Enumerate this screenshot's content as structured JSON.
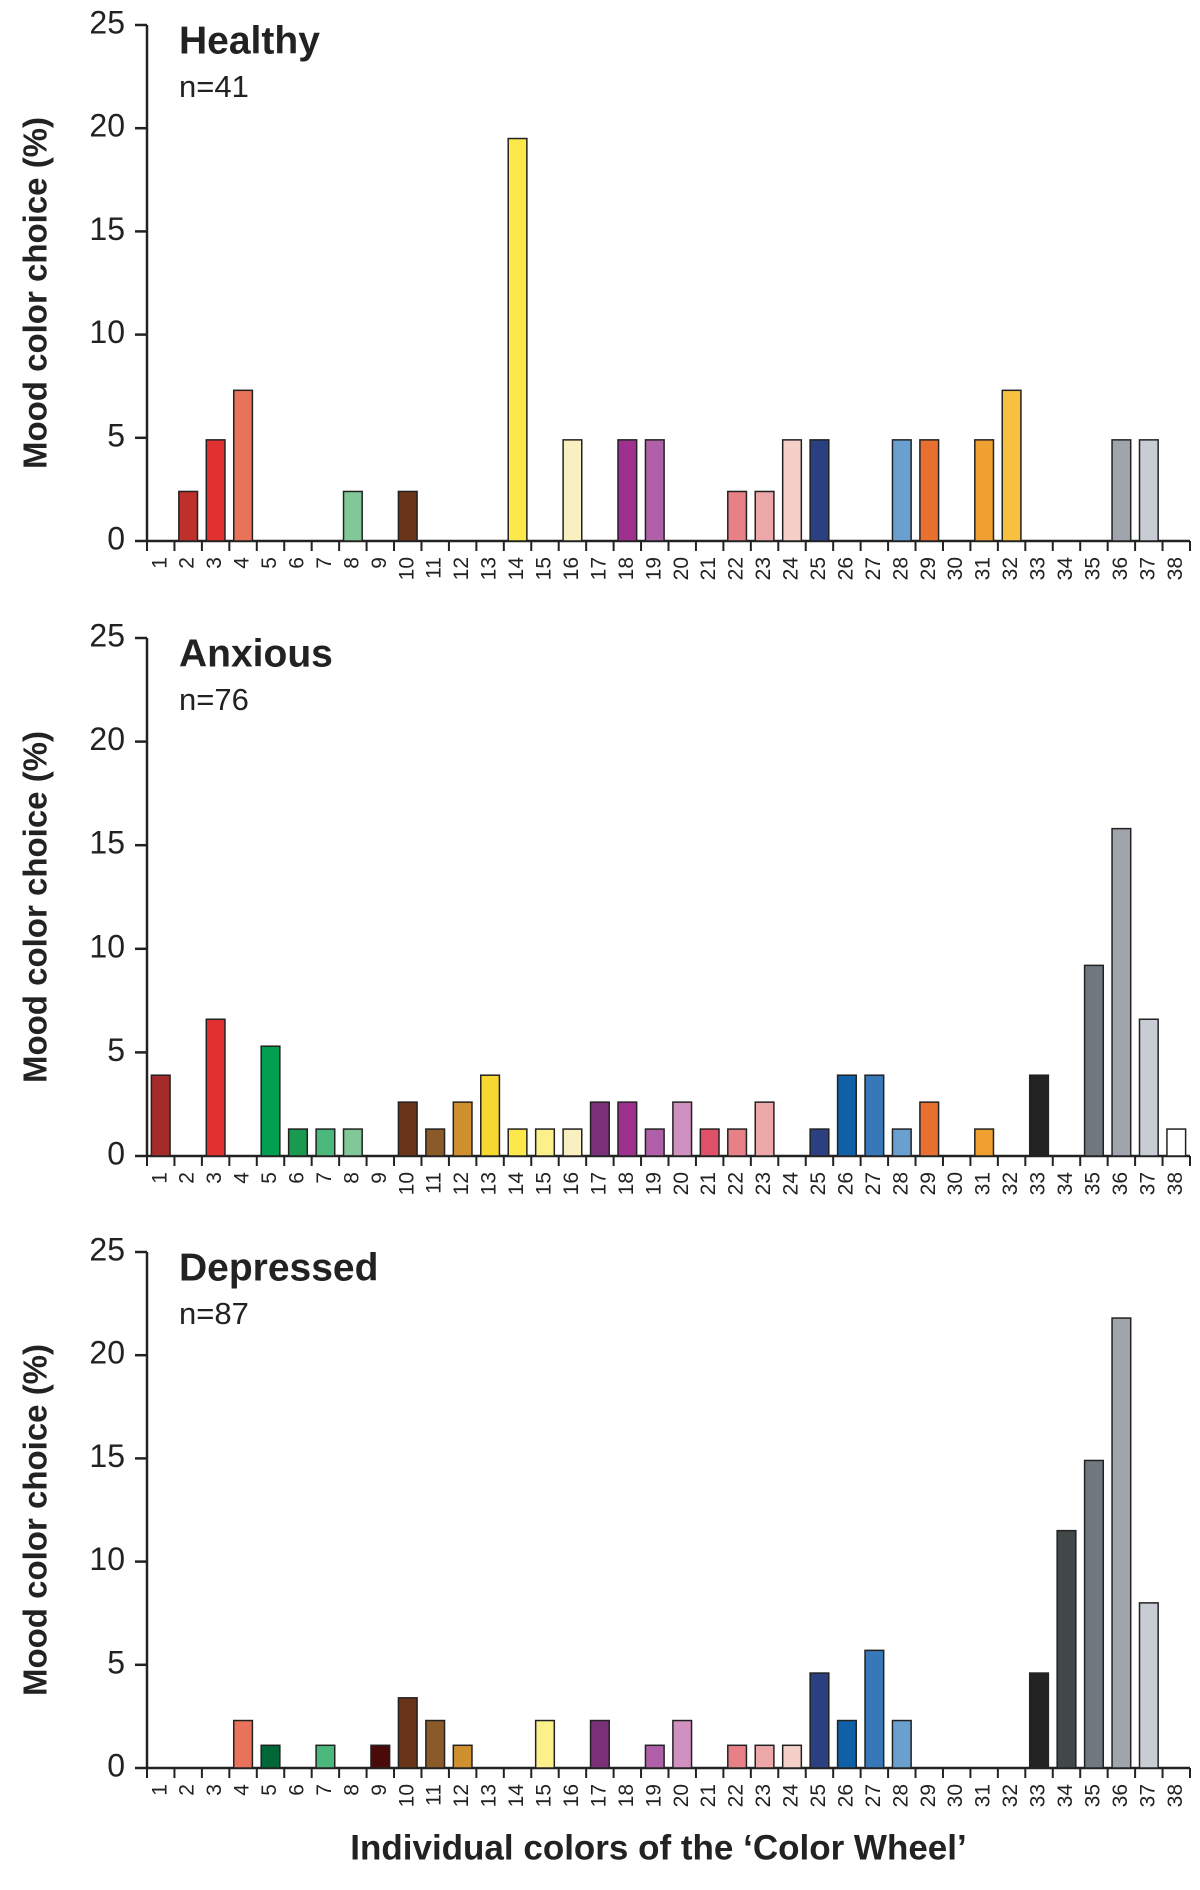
{
  "chart_data": [
    {
      "type": "bar",
      "title": "Healthy",
      "subtitle": "n=41",
      "ylabel": "Mood color choice (%)",
      "categories": [
        "1",
        "2",
        "3",
        "4",
        "5",
        "6",
        "7",
        "8",
        "9",
        "10",
        "11",
        "12",
        "13",
        "14",
        "15",
        "16",
        "17",
        "18",
        "19",
        "20",
        "21",
        "22",
        "23",
        "24",
        "25",
        "26",
        "27",
        "28",
        "29",
        "30",
        "31",
        "32",
        "33",
        "34",
        "35",
        "36",
        "37",
        "38"
      ],
      "values": [
        0,
        2.4,
        4.9,
        7.3,
        0,
        0,
        0,
        2.4,
        0,
        2.4,
        0,
        0,
        0,
        19.5,
        0,
        4.9,
        0,
        4.9,
        4.9,
        0,
        0,
        2.4,
        2.4,
        4.9,
        4.9,
        0,
        0,
        4.9,
        4.9,
        0,
        4.9,
        7.3,
        0,
        0,
        0,
        4.9,
        4.9,
        0
      ],
      "colors": [
        "#a52a2a",
        "#c0302a",
        "#e03030",
        "#e8735a",
        "#00a050",
        "#1a9a50",
        "#4ab87a",
        "#80c898",
        "#4a0a0a",
        "#6a3418",
        "#8a5a28",
        "#d09030",
        "#f8d830",
        "#fce84a",
        "#fcf08a",
        "#f8f0c0",
        "#7a3078",
        "#a03090",
        "#b060a8",
        "#d090c0",
        "#e05068",
        "#e88088",
        "#eca8a8",
        "#f4d0c8",
        "#2a4080",
        "#1060a8",
        "#3878b8",
        "#6aa0d0",
        "#e87030",
        "#f08838",
        "#f0a030",
        "#f8c040",
        "#222222",
        "#404848",
        "#707880",
        "#a0a4ac",
        "#c8ccd4",
        "#ffffff"
      ],
      "ylim": [
        0,
        25
      ],
      "yticks": [
        0,
        5,
        10,
        15,
        20,
        25
      ]
    },
    {
      "type": "bar",
      "title": "Anxious",
      "subtitle": "n=76",
      "ylabel": "Mood color choice (%)",
      "categories": [
        "1",
        "2",
        "3",
        "4",
        "5",
        "6",
        "7",
        "8",
        "9",
        "10",
        "11",
        "12",
        "13",
        "14",
        "15",
        "16",
        "17",
        "18",
        "19",
        "20",
        "21",
        "22",
        "23",
        "24",
        "25",
        "26",
        "27",
        "28",
        "29",
        "30",
        "31",
        "32",
        "33",
        "34",
        "35",
        "36",
        "37",
        "38"
      ],
      "values": [
        3.9,
        0,
        6.6,
        0,
        5.3,
        1.3,
        1.3,
        1.3,
        0,
        2.6,
        1.3,
        2.6,
        3.9,
        1.3,
        1.3,
        1.3,
        2.6,
        2.6,
        1.3,
        2.6,
        1.3,
        1.3,
        2.6,
        0,
        1.3,
        3.9,
        3.9,
        1.3,
        2.6,
        0,
        1.3,
        0,
        3.9,
        0,
        9.2,
        15.8,
        6.6,
        1.3
      ],
      "colors": [
        "#a52a2a",
        "#c0302a",
        "#e03030",
        "#e8735a",
        "#00a050",
        "#1a9a50",
        "#4ab87a",
        "#80c898",
        "#4a0a0a",
        "#6a3418",
        "#8a5a28",
        "#d09030",
        "#f8d830",
        "#fce84a",
        "#fcf08a",
        "#f8f0c0",
        "#7a3078",
        "#a03090",
        "#b060a8",
        "#d090c0",
        "#e05068",
        "#e88088",
        "#eca8a8",
        "#f4d0c8",
        "#2a4080",
        "#1060a8",
        "#3878b8",
        "#6aa0d0",
        "#e87030",
        "#f08838",
        "#f0a030",
        "#f8c040",
        "#222222",
        "#404848",
        "#707880",
        "#a0a4ac",
        "#c8ccd4",
        "#ffffff"
      ],
      "ylim": [
        0,
        25
      ],
      "yticks": [
        0,
        5,
        10,
        15,
        20,
        25
      ]
    },
    {
      "type": "bar",
      "title": "Depressed",
      "subtitle": "n=87",
      "ylabel": "Mood color choice (%)",
      "xlabel": "Individual colors of the ‘Color Wheel’",
      "categories": [
        "1",
        "2",
        "3",
        "4",
        "5",
        "6",
        "7",
        "8",
        "9",
        "10",
        "11",
        "12",
        "13",
        "14",
        "15",
        "16",
        "17",
        "18",
        "19",
        "20",
        "21",
        "22",
        "23",
        "24",
        "25",
        "26",
        "27",
        "28",
        "29",
        "30",
        "31",
        "32",
        "33",
        "34",
        "35",
        "36",
        "37",
        "38"
      ],
      "values": [
        0,
        0,
        0,
        2.3,
        1.1,
        0,
        1.1,
        0,
        1.1,
        3.4,
        2.3,
        1.1,
        0,
        0,
        2.3,
        0,
        2.3,
        0,
        1.1,
        2.3,
        0,
        1.1,
        1.1,
        1.1,
        4.6,
        2.3,
        5.7,
        2.3,
        0,
        0,
        0,
        0,
        4.6,
        11.5,
        14.9,
        21.8,
        8.0,
        0
      ],
      "colors": [
        "#a52a2a",
        "#c0302a",
        "#e03030",
        "#e8735a",
        "#006838",
        "#1a9a50",
        "#4ab87a",
        "#80c898",
        "#4a0a0a",
        "#6a3418",
        "#8a5a28",
        "#d09030",
        "#f8d830",
        "#fce84a",
        "#fcf08a",
        "#f8f0c0",
        "#7a3078",
        "#a03090",
        "#b060a8",
        "#d090c0",
        "#e05068",
        "#e88088",
        "#eca8a8",
        "#f4d0c8",
        "#2a4080",
        "#1060a8",
        "#3878b8",
        "#6aa0d0",
        "#e87030",
        "#f08838",
        "#f0a030",
        "#f8c040",
        "#222222",
        "#404848",
        "#707880",
        "#a0a4ac",
        "#c8ccd4",
        "#ffffff"
      ],
      "ylim": [
        0,
        25
      ],
      "yticks": [
        0,
        5,
        10,
        15,
        20,
        25
      ]
    }
  ]
}
